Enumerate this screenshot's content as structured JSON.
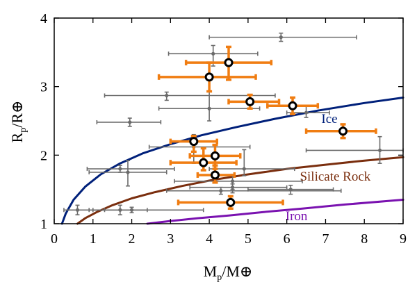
{
  "chart_data": {
    "type": "scatter",
    "xlabel": {
      "main": "M",
      "sub": "p",
      "tail": "/M⊕"
    },
    "ylabel": {
      "main": "R",
      "sub": "p",
      "tail": "/R⊕"
    },
    "xlim": [
      0,
      9
    ],
    "ylim": [
      1,
      4
    ],
    "x_ticks": [
      0,
      1,
      2,
      3,
      4,
      5,
      6,
      7,
      8,
      9
    ],
    "y_ticks": [
      1,
      2,
      3,
      4
    ],
    "grid": false,
    "legend": "none",
    "curves": [
      {
        "name": "Ice",
        "color": "#00207a",
        "x": [
          0.2,
          0.3,
          0.5,
          0.8,
          1.2,
          1.7,
          2.3,
          3.0,
          3.8,
          4.7,
          5.7,
          6.8,
          8.0,
          9.0
        ],
        "y": [
          1.0,
          1.15,
          1.35,
          1.54,
          1.72,
          1.88,
          2.03,
          2.16,
          2.29,
          2.41,
          2.53,
          2.65,
          2.76,
          2.84
        ]
      },
      {
        "name": "Silicate Rock",
        "color": "#7a2e0e",
        "x": [
          0.6,
          0.8,
          1.1,
          1.5,
          2.0,
          2.6,
          3.3,
          4.1,
          5.0,
          6.0,
          7.0,
          8.0,
          9.0
        ],
        "y": [
          1.0,
          1.08,
          1.17,
          1.27,
          1.37,
          1.46,
          1.55,
          1.64,
          1.72,
          1.8,
          1.86,
          1.92,
          1.97
        ]
      },
      {
        "name": "Iron",
        "color": "#7a12b0",
        "x": [
          2.4,
          3.0,
          3.7,
          4.5,
          5.4,
          6.4,
          7.5,
          9.0
        ],
        "y": [
          1.0,
          1.04,
          1.08,
          1.12,
          1.17,
          1.22,
          1.28,
          1.35
        ]
      }
    ],
    "gray_points": [
      {
        "x": 5.85,
        "y": 3.72,
        "xerr": [
          4.0,
          7.8
        ],
        "yerr": [
          3.66,
          3.78
        ]
      },
      {
        "x": 4.1,
        "y": 3.48,
        "xerr": [
          2.95,
          5.25
        ],
        "yerr": [
          3.3,
          3.6
        ]
      },
      {
        "x": 2.9,
        "y": 2.87,
        "xerr": [
          1.3,
          5.7
        ],
        "yerr": [
          2.8,
          2.92
        ]
      },
      {
        "x": 4.0,
        "y": 2.68,
        "xerr": [
          2.7,
          5.3
        ],
        "yerr": [
          2.5,
          2.93
        ]
      },
      {
        "x": 6.5,
        "y": 2.62,
        "xerr": [
          6.0,
          7.1
        ],
        "yerr": [
          2.55,
          2.72
        ]
      },
      {
        "x": 1.95,
        "y": 2.48,
        "xerr": [
          1.1,
          2.75
        ],
        "yerr": [
          2.42,
          2.54
        ]
      },
      {
        "x": 3.6,
        "y": 2.12,
        "xerr": [
          2.45,
          5.05
        ],
        "yerr": [
          1.88,
          2.3
        ]
      },
      {
        "x": 8.4,
        "y": 2.07,
        "xerr": [
          6.5,
          9.0
        ],
        "yerr": [
          1.88,
          2.27
        ]
      },
      {
        "x": 1.9,
        "y": 1.75,
        "xerr": [
          0.9,
          2.9
        ],
        "yerr": [
          1.55,
          1.92
        ]
      },
      {
        "x": 4.9,
        "y": 1.8,
        "xerr": [
          4.0,
          6.2
        ],
        "yerr": [
          1.7,
          2.08
        ]
      },
      {
        "x": 1.7,
        "y": 1.8,
        "xerr": [
          0.85,
          3.1
        ],
        "yerr": [
          1.75,
          1.85
        ]
      },
      {
        "x": 4.6,
        "y": 1.62,
        "xerr": [
          3.1,
          6.4
        ],
        "yerr": [
          1.5,
          1.72
        ]
      },
      {
        "x": 4.3,
        "y": 1.48,
        "xerr": [
          2.9,
          7.4
        ],
        "yerr": [
          1.43,
          1.53
        ]
      },
      {
        "x": 4.6,
        "y": 1.53,
        "xerr": [
          3.5,
          6.0
        ],
        "yerr": [
          1.45,
          1.58
        ]
      },
      {
        "x": 6.1,
        "y": 1.5,
        "xerr": [
          5.0,
          7.2
        ],
        "yerr": [
          1.43,
          1.56
        ]
      },
      {
        "x": 0.6,
        "y": 1.2,
        "xerr": [
          0.25,
          1.3
        ],
        "yerr": [
          1.13,
          1.27
        ]
      },
      {
        "x": 1.7,
        "y": 1.2,
        "xerr": [
          0.9,
          2.4
        ],
        "yerr": [
          1.13,
          1.27
        ]
      },
      {
        "x": 2.0,
        "y": 1.2,
        "xerr": [
          1.0,
          3.85
        ],
        "yerr": [
          1.16,
          1.24
        ]
      }
    ],
    "orange_points": [
      {
        "x": 4.5,
        "y": 3.35,
        "xerr": [
          3.4,
          5.6
        ],
        "yerr": [
          3.1,
          3.58
        ]
      },
      {
        "x": 4.0,
        "y": 3.14,
        "xerr": [
          2.7,
          5.2
        ],
        "yerr": [
          2.93,
          3.35
        ]
      },
      {
        "x": 5.05,
        "y": 2.78,
        "xerr": [
          4.5,
          5.8
        ],
        "yerr": [
          2.68,
          2.88
        ]
      },
      {
        "x": 6.15,
        "y": 2.72,
        "xerr": [
          5.5,
          6.8
        ],
        "yerr": [
          2.6,
          2.84
        ]
      },
      {
        "x": 7.45,
        "y": 2.35,
        "xerr": [
          6.5,
          8.3
        ],
        "yerr": [
          2.25,
          2.45
        ]
      },
      {
        "x": 3.6,
        "y": 2.2,
        "xerr": [
          3.0,
          4.2
        ],
        "yerr": [
          2.05,
          2.28
        ]
      },
      {
        "x": 4.15,
        "y": 1.99,
        "xerr": [
          3.5,
          4.8
        ],
        "yerr": [
          1.8,
          2.15
        ]
      },
      {
        "x": 3.85,
        "y": 1.89,
        "xerr": [
          3.0,
          4.7
        ],
        "yerr": [
          1.78,
          2.1
        ]
      },
      {
        "x": 4.15,
        "y": 1.71,
        "xerr": [
          3.7,
          4.65
        ],
        "yerr": [
          1.6,
          1.85
        ]
      },
      {
        "x": 4.55,
        "y": 1.31,
        "xerr": [
          3.2,
          5.9
        ],
        "yerr": [
          1.22,
          1.4
        ]
      }
    ],
    "curve_labels": [
      {
        "text": "Ice",
        "x": 7.1,
        "y": 2.47,
        "color": "#00207a"
      },
      {
        "text": "Silicate Rock",
        "x": 7.25,
        "y": 1.63,
        "color": "#7a2e0e"
      },
      {
        "text": "Iron",
        "x": 6.25,
        "y": 1.05,
        "color": "#7a12b0"
      }
    ]
  }
}
